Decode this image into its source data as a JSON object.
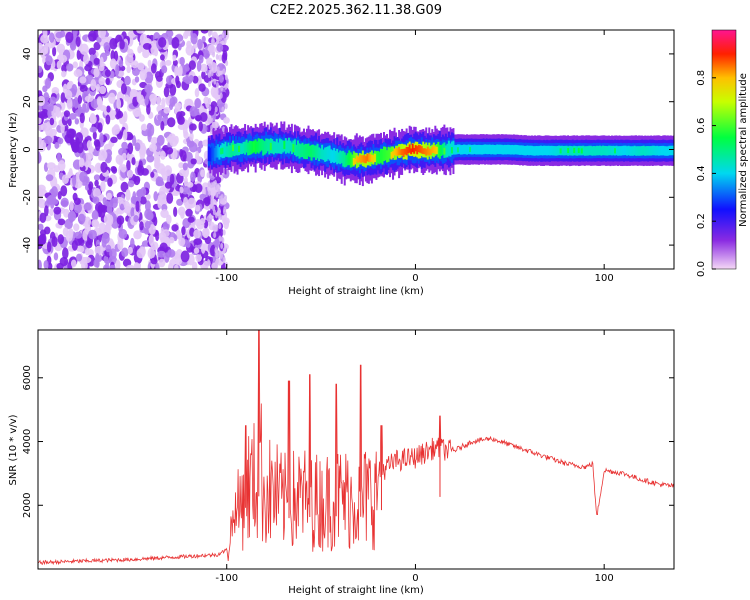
{
  "title": "C2E2.2025.362.11.38.G09",
  "chart_data": [
    {
      "type": "heatmap",
      "name": "spectrogram",
      "xlabel": "Height of straight line (km)",
      "ylabel": "Frequency (Hz)",
      "xlim": [
        -200,
        137
      ],
      "ylim": [
        -50,
        50
      ],
      "xticks": [
        -100,
        0,
        100
      ],
      "yticks": [
        -40,
        -20,
        0,
        20,
        40
      ],
      "colorbar": {
        "label": "Normalized spectral amplitude",
        "range": [
          0,
          1
        ],
        "ticks": [
          0.0,
          0.2,
          0.4,
          0.6,
          0.8
        ]
      },
      "track": {
        "x": [
          -110,
          -104,
          -98,
          -92,
          -86,
          -80,
          -74,
          -68,
          -62,
          -56,
          -50,
          -44,
          -38,
          -32,
          -26,
          -20,
          -14,
          -8,
          -2,
          4,
          10,
          16,
          22,
          30,
          40,
          50,
          60,
          70,
          80,
          90,
          100,
          110,
          120,
          130,
          137
        ],
        "frequency": [
          -2,
          -1,
          0,
          0.5,
          1,
          1.5,
          1.5,
          1,
          0,
          -0.5,
          -1.5,
          -2.5,
          -4,
          -4.5,
          -4,
          -3,
          -2,
          -1,
          0,
          -0.5,
          -0.5,
          0,
          0,
          0,
          0,
          0,
          -0.5,
          -0.5,
          -0.5,
          -0.5,
          -0.5,
          -0.5,
          -0.5,
          -0.5,
          -0.5
        ],
        "amplitude": [
          0.3,
          0.5,
          0.6,
          0.55,
          0.7,
          0.6,
          0.55,
          0.55,
          0.6,
          0.65,
          0.55,
          0.5,
          0.6,
          0.8,
          0.85,
          0.7,
          0.75,
          0.85,
          0.9,
          0.85,
          0.8,
          0.55,
          0.5,
          0.5,
          0.5,
          0.5,
          0.5,
          0.5,
          0.55,
          0.55,
          0.55,
          0.5,
          0.55,
          0.5,
          0.5
        ]
      }
    },
    {
      "type": "line",
      "name": "snr",
      "xlabel": "Height of straight line (km)",
      "ylabel": "SNR (10 * v/v)",
      "xlim": [
        -200,
        137
      ],
      "ylim": [
        0,
        7500
      ],
      "xticks": [
        -100,
        0,
        100
      ],
      "yticks": [
        2000,
        4000,
        6000
      ],
      "color": "#e83232",
      "series": [
        {
          "name": "SNR",
          "x": [
            -200,
            -150,
            -105,
            -100,
            -95,
            -90,
            -85,
            -82,
            -80,
            -75,
            -70,
            -60,
            -50,
            -40,
            -30,
            -20,
            -10,
            0,
            10,
            20,
            30,
            40,
            50,
            60,
            70,
            80,
            90,
            94,
            96,
            100,
            110,
            120,
            130,
            137
          ],
          "y": [
            200,
            300,
            450,
            600,
            2000,
            3200,
            3400,
            4000,
            3000,
            3000,
            2600,
            2800,
            2600,
            2800,
            2700,
            3000,
            3400,
            3500,
            3800,
            3700,
            4000,
            4100,
            3900,
            3700,
            3500,
            3300,
            3200,
            3300,
            1600,
            3100,
            3000,
            2800,
            2650,
            2600
          ]
        }
      ],
      "peaks": [
        {
          "x": -90,
          "y": 4500
        },
        {
          "x": -83,
          "y": 7500
        },
        {
          "x": -67,
          "y": 5900
        },
        {
          "x": -56,
          "y": 6100
        },
        {
          "x": -42,
          "y": 5800
        },
        {
          "x": -29,
          "y": 6400
        },
        {
          "x": -18,
          "y": 4500
        },
        {
          "x": 13,
          "y": 4800
        }
      ]
    }
  ]
}
